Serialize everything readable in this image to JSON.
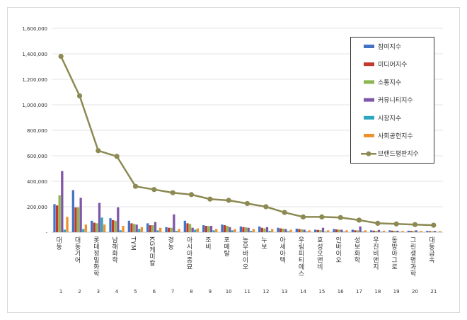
{
  "chart_data": {
    "type": "bar",
    "title": "",
    "xlabel": "",
    "ylabel": "",
    "ylim": [
      0,
      1600000
    ],
    "yticks": [
      "-",
      "200,000",
      "400,000",
      "600,000",
      "800,000",
      "1,000,000",
      "1,200,000",
      "1,400,000",
      "1,600,000"
    ],
    "grid": true,
    "legend_position": "top-right",
    "ranks": [
      "1",
      "2",
      "3",
      "4",
      "5",
      "6",
      "7",
      "8",
      "9",
      "10",
      "11",
      "12",
      "13",
      "14",
      "15",
      "16",
      "17",
      "18",
      "19",
      "20",
      "21"
    ],
    "categories": [
      "대동",
      "대동기어",
      "롯데정밀화학",
      "남해화학",
      "TYM",
      "KG케미칼",
      "경농",
      "아시아종묘",
      "조비",
      "포메탈",
      "농우바이오",
      "누보",
      "아세아텍",
      "우림피티에스",
      "효성오앤비",
      "인바이오",
      "성보화학",
      "우진비앤지",
      "동방아그로",
      "그린생명과학",
      "대동금속"
    ],
    "series": [
      {
        "name": "참여지수",
        "color": "#4472c4",
        "values": [
          220000,
          330000,
          90000,
          110000,
          90000,
          70000,
          40000,
          90000,
          55000,
          60000,
          45000,
          45000,
          35000,
          28000,
          20000,
          25000,
          20000,
          15000,
          15000,
          12000,
          10000
        ]
      },
      {
        "name": "미디어지수",
        "color": "#c0392b",
        "values": [
          210000,
          195000,
          75000,
          95000,
          70000,
          55000,
          35000,
          70000,
          50000,
          55000,
          40000,
          35000,
          30000,
          25000,
          18000,
          22000,
          15000,
          12000,
          12000,
          10000,
          8000
        ]
      },
      {
        "name": "소통지수",
        "color": "#8db550",
        "values": [
          290000,
          195000,
          70000,
          90000,
          65000,
          55000,
          35000,
          65000,
          48000,
          50000,
          38000,
          30000,
          28000,
          22000,
          16000,
          20000,
          14000,
          11000,
          11000,
          9000,
          7000
        ]
      },
      {
        "name": "커뮤니티지수",
        "color": "#7e57a8",
        "values": [
          480000,
          270000,
          230000,
          195000,
          60000,
          80000,
          140000,
          35000,
          50000,
          40000,
          35000,
          40000,
          25000,
          20000,
          35000,
          20000,
          45000,
          18000,
          12000,
          15000,
          10000
        ]
      },
      {
        "name": "시장지수",
        "color": "#2fa5c0",
        "values": [
          20000,
          25000,
          115000,
          15000,
          25000,
          15000,
          10000,
          20000,
          15000,
          15000,
          10000,
          10000,
          8000,
          6000,
          5000,
          5000,
          5000,
          4000,
          3000,
          3000,
          2000
        ]
      },
      {
        "name": "사회공헌지수",
        "color": "#f0922c",
        "values": [
          120000,
          60000,
          60000,
          50000,
          40000,
          35000,
          25000,
          30000,
          25000,
          25000,
          25000,
          25000,
          20000,
          15000,
          15000,
          15000,
          15000,
          12000,
          10000,
          10000,
          8000
        ]
      }
    ],
    "line_series": {
      "name": "브랜드평판지수",
      "color": "#8c8a52",
      "values": [
        1380000,
        1070000,
        640000,
        595000,
        360000,
        335000,
        310000,
        295000,
        260000,
        250000,
        225000,
        200000,
        155000,
        120000,
        120000,
        115000,
        95000,
        70000,
        65000,
        60000,
        55000
      ]
    }
  }
}
